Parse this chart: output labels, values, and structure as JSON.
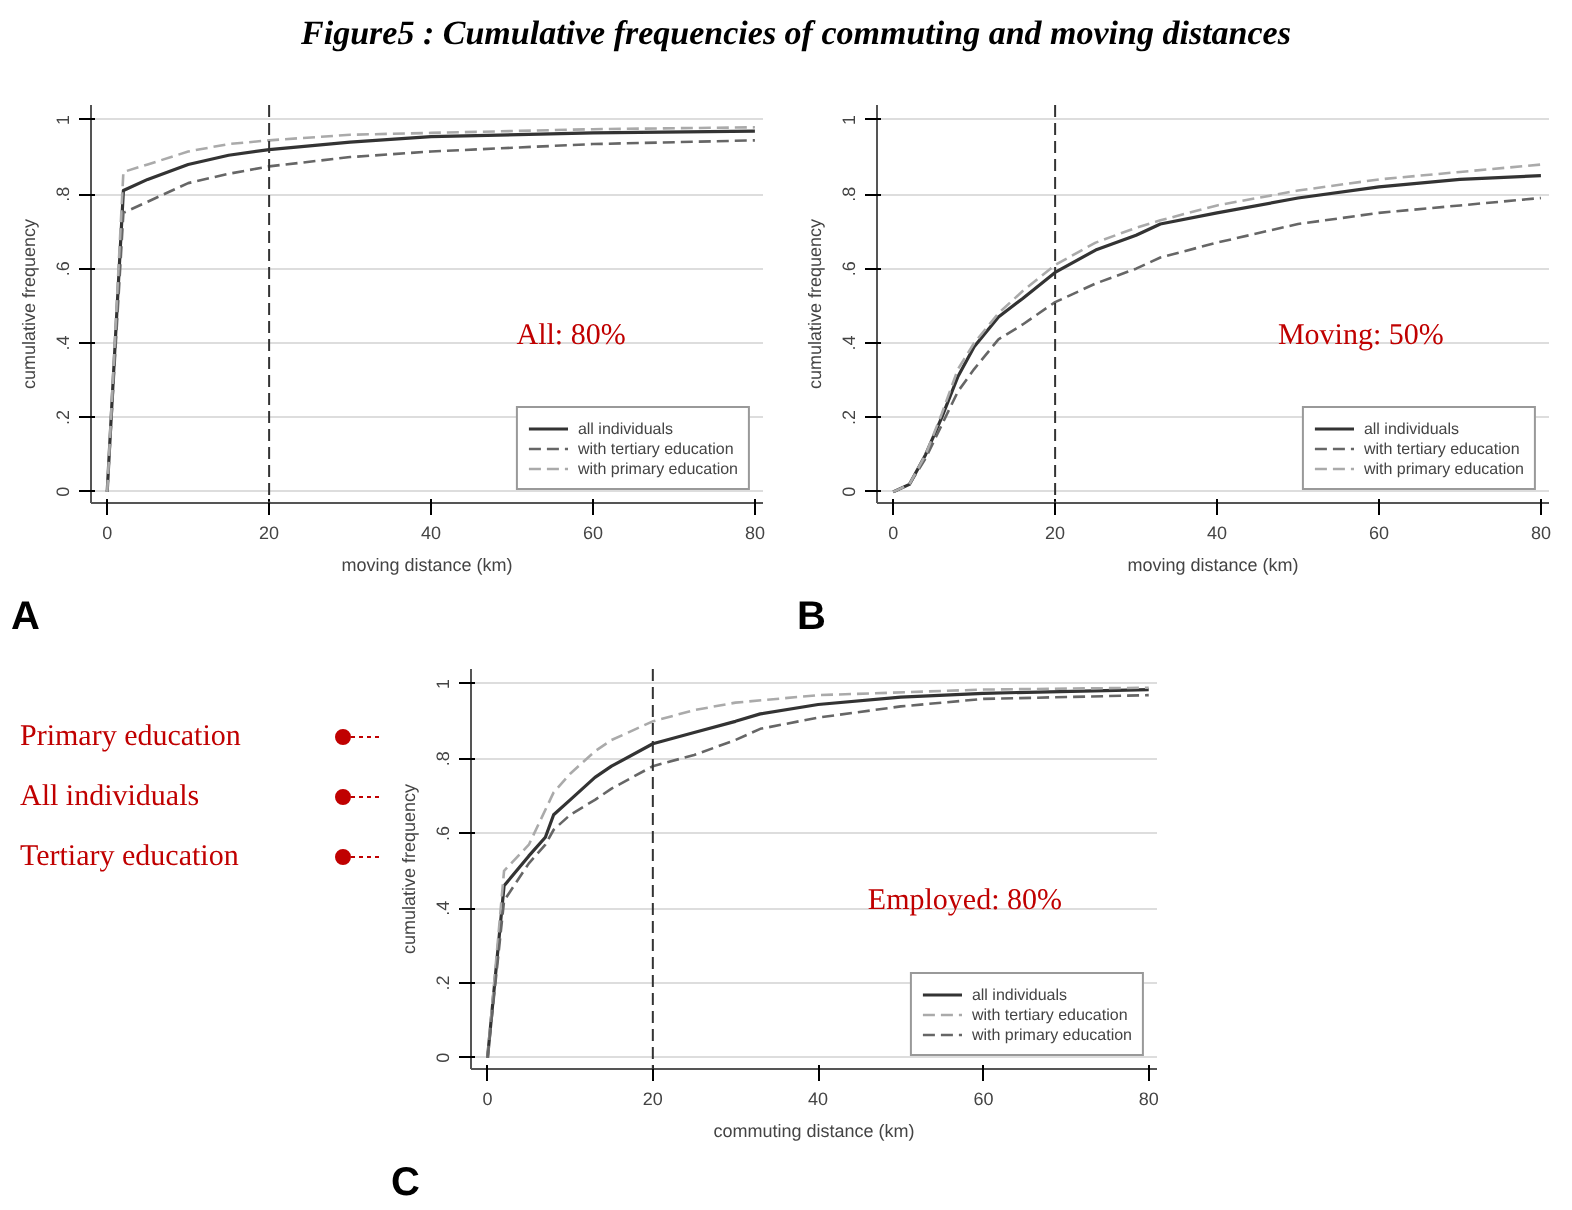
{
  "chart_data": [
    {
      "type": "line",
      "title": "Figure5 :  Cumulative frequencies of commuting and moving distances",
      "xlabel": "moving distance (km)",
      "ylabel": "cumulative frequency",
      "xlim": [
        -2,
        81
      ],
      "ylim": [
        -0.03,
        1.04
      ],
      "xticks": [
        0,
        20,
        40,
        60,
        80
      ],
      "yticks": [
        0,
        {
          "value": 0.2,
          "label": ".2"
        },
        {
          "value": 0.4,
          "label": ".4"
        },
        {
          "value": 0.6,
          "label": ".6"
        },
        {
          "value": 0.8,
          "label": ".8"
        },
        1
      ],
      "grid": "y",
      "legend": "bottom right",
      "ref_lines": [
        {
          "axis": "x",
          "value": 20,
          "color": "#333333",
          "line_style": "dashed"
        }
      ],
      "annotations": [
        "A",
        "All:  80%"
      ],
      "series": [
        {
          "name": "all individuals",
          "color": "#333333",
          "line_style": "solid",
          "x": [
            0,
            2,
            5,
            10,
            15,
            20,
            30,
            40,
            60,
            80
          ],
          "values": [
            0,
            0.81,
            0.84,
            0.88,
            0.905,
            0.92,
            0.94,
            0.955,
            0.965,
            0.97
          ]
        },
        {
          "name": "with tertiary education",
          "color": "#666666",
          "line_style": "dashed",
          "x": [
            0,
            2,
            5,
            10,
            15,
            20,
            30,
            40,
            60,
            80
          ],
          "values": [
            0,
            0.75,
            0.78,
            0.83,
            0.855,
            0.875,
            0.9,
            0.915,
            0.935,
            0.945
          ]
        },
        {
          "name": "with primary education",
          "color": "#aaaaaa",
          "line_style": "dashed",
          "x": [
            0,
            2,
            5,
            10,
            15,
            20,
            30,
            40,
            60,
            80
          ],
          "values": [
            0,
            0.86,
            0.88,
            0.915,
            0.935,
            0.945,
            0.96,
            0.965,
            0.975,
            0.98
          ]
        }
      ]
    },
    {
      "type": "line",
      "xlabel": "moving distance (km)",
      "ylabel": "cumulative frequency",
      "xlim": [
        -2,
        81
      ],
      "ylim": [
        -0.03,
        1.04
      ],
      "xticks": [
        0,
        20,
        40,
        60,
        80
      ],
      "yticks": [
        0,
        {
          "value": 0.2,
          "label": ".2"
        },
        {
          "value": 0.4,
          "label": ".4"
        },
        {
          "value": 0.6,
          "label": ".6"
        },
        {
          "value": 0.8,
          "label": ".8"
        },
        1
      ],
      "grid": "y",
      "legend": "bottom right",
      "ref_lines": [
        {
          "axis": "x",
          "value": 20,
          "color": "#333333",
          "line_style": "dashed"
        }
      ],
      "annotations": [
        "B",
        "Moving: 50%"
      ],
      "series": [
        {
          "name": "all individuals",
          "color": "#333333",
          "line_style": "solid",
          "x": [
            0,
            2,
            4,
            6,
            8,
            10,
            13,
            16,
            20,
            25,
            30,
            33,
            40,
            50,
            60,
            70,
            80
          ],
          "values": [
            0,
            0.02,
            0.1,
            0.2,
            0.31,
            0.39,
            0.47,
            0.52,
            0.59,
            0.65,
            0.69,
            0.72,
            0.75,
            0.79,
            0.82,
            0.84,
            0.85
          ]
        },
        {
          "name": "with tertiary education",
          "color": "#666666",
          "line_style": "dashed",
          "x": [
            0,
            2,
            4,
            6,
            8,
            10,
            13,
            16,
            20,
            25,
            30,
            33,
            40,
            50,
            60,
            70,
            80
          ],
          "values": [
            0,
            0.02,
            0.09,
            0.18,
            0.27,
            0.33,
            0.41,
            0.45,
            0.51,
            0.56,
            0.6,
            0.63,
            0.67,
            0.72,
            0.75,
            0.77,
            0.79
          ]
        },
        {
          "name": "with primary education",
          "color": "#aaaaaa",
          "line_style": "dashed",
          "x": [
            0,
            2,
            4,
            6,
            8,
            10,
            13,
            16,
            20,
            25,
            30,
            33,
            40,
            50,
            60,
            70,
            80
          ],
          "values": [
            0,
            0.02,
            0.1,
            0.21,
            0.33,
            0.4,
            0.48,
            0.54,
            0.61,
            0.67,
            0.71,
            0.73,
            0.77,
            0.81,
            0.84,
            0.86,
            0.88
          ]
        }
      ]
    },
    {
      "type": "line",
      "xlabel": "commuting distance (km)",
      "ylabel": "cumulative frequency",
      "xlim": [
        -2,
        81
      ],
      "ylim": [
        -0.03,
        1.04
      ],
      "xticks": [
        0,
        20,
        40,
        60,
        80
      ],
      "yticks": [
        0,
        {
          "value": 0.2,
          "label": ".2"
        },
        {
          "value": 0.4,
          "label": ".4"
        },
        {
          "value": 0.6,
          "label": ".6"
        },
        {
          "value": 0.8,
          "label": ".8"
        },
        1
      ],
      "grid": "y",
      "legend": "bottom right",
      "ref_lines": [
        {
          "axis": "x",
          "value": 20,
          "color": "#333333",
          "line_style": "dashed"
        }
      ],
      "annotations": [
        "C",
        "Employed: 80%",
        "Primary education",
        "All individuals",
        "Tertiary education"
      ],
      "series": [
        {
          "name": "all individuals",
          "color": "#333333",
          "line_style": "solid",
          "x": [
            0,
            2,
            5,
            7,
            8,
            10,
            13,
            15,
            20,
            25,
            30,
            33,
            40,
            50,
            60,
            80
          ],
          "values": [
            0,
            0.46,
            0.54,
            0.59,
            0.65,
            0.69,
            0.75,
            0.78,
            0.84,
            0.87,
            0.9,
            0.92,
            0.945,
            0.965,
            0.975,
            0.985
          ]
        },
        {
          "name": "with tertiary education",
          "color": "#aaaaaa",
          "line_style": "dashed",
          "x": [
            0,
            2,
            5,
            8,
            10,
            13,
            15,
            20,
            25,
            30,
            40,
            60,
            80
          ],
          "values": [
            0,
            0.5,
            0.57,
            0.71,
            0.76,
            0.82,
            0.85,
            0.9,
            0.93,
            0.95,
            0.97,
            0.985,
            0.99
          ]
        },
        {
          "name": "with primary education",
          "color": "#666666",
          "line_style": "dashed",
          "x": [
            0,
            2,
            5,
            7,
            8,
            10,
            13,
            15,
            20,
            25,
            30,
            33,
            40,
            50,
            60,
            80
          ],
          "values": [
            0,
            0.42,
            0.52,
            0.57,
            0.61,
            0.65,
            0.69,
            0.72,
            0.78,
            0.81,
            0.85,
            0.88,
            0.91,
            0.94,
            0.96,
            0.97
          ]
        }
      ]
    }
  ]
}
